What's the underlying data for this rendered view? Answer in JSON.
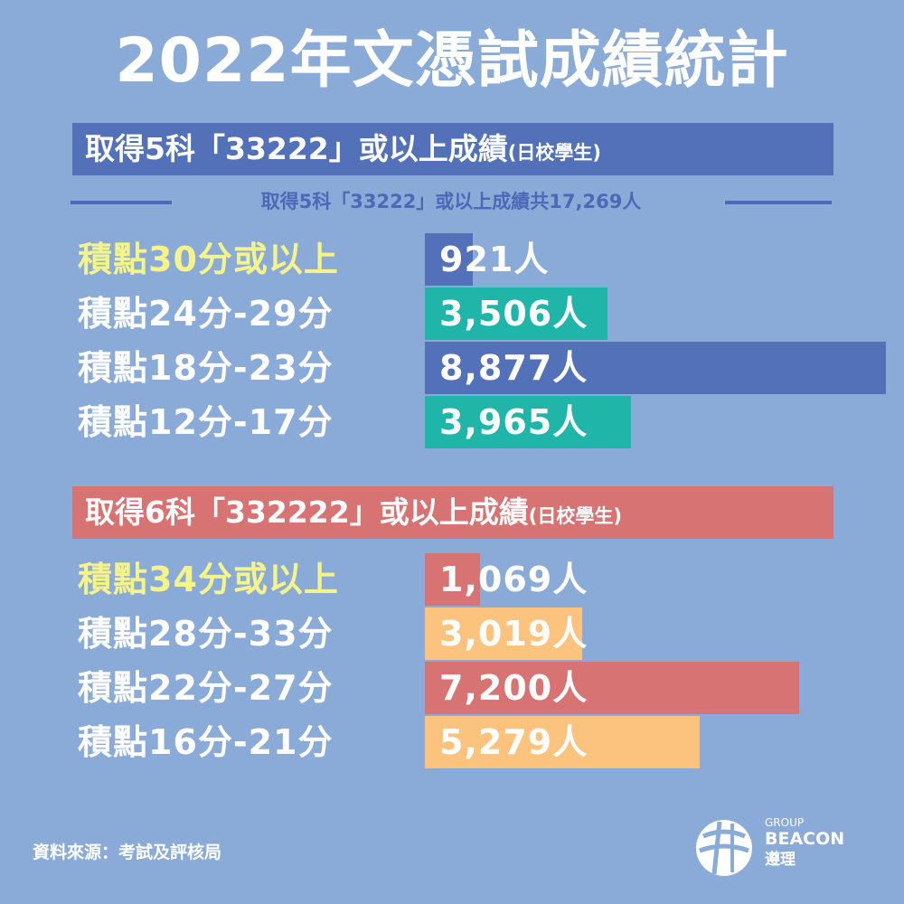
{
  "title": "2022年文憑試成績統計",
  "section1": {
    "banner_main": "取得5科「33222」或以上成績",
    "banner_note": "(日校學生)",
    "subtitle": "取得5科「33222」或以上成績共17,269人"
  },
  "section2": {
    "banner_main": "取得6科「332222」或以上成績",
    "banner_note": "(日校學生)"
  },
  "source": "資料來源：考試及評核局",
  "logo": {
    "group": "GROUP",
    "name": "BEACON",
    "chinese": "遵理"
  },
  "colors": {
    "background": "#8aaad8",
    "blue": "#5271b8",
    "teal": "#1fb5a8",
    "red": "#d87373",
    "orange": "#fbc37e",
    "highlight_label": "#f4f48a",
    "label": "#ffffff"
  },
  "chart_data": [
    {
      "type": "bar",
      "orientation": "horizontal",
      "title": "取得5科「33222」或以上成績(日校學生)",
      "categories": [
        "積點30分或以上",
        "積點24分-29分",
        "積點18分-23分",
        "積點12分-17分"
      ],
      "values": [
        921,
        3506,
        8877,
        3965
      ],
      "value_labels": [
        "921人",
        "3,506人",
        "8,877人",
        "3,965人"
      ],
      "total_label": "取得5科「33222」或以上成績共17,269人",
      "total": 17269,
      "bar_colors": [
        "#5271b8",
        "#1fb5a8",
        "#5271b8",
        "#1fb5a8"
      ],
      "highlight_first_label": true
    },
    {
      "type": "bar",
      "orientation": "horizontal",
      "title": "取得6科「332222」或以上成績(日校學生)",
      "categories": [
        "積點34分或以上",
        "積點28分-33分",
        "積點22分-27分",
        "積點16分-21分"
      ],
      "values": [
        1069,
        3019,
        7200,
        5279
      ],
      "value_labels": [
        "1,069人",
        "3,019人",
        "7,200人",
        "5,279人"
      ],
      "bar_colors": [
        "#d87373",
        "#fbc37e",
        "#d87373",
        "#fbc37e"
      ],
      "highlight_first_label": true
    }
  ]
}
